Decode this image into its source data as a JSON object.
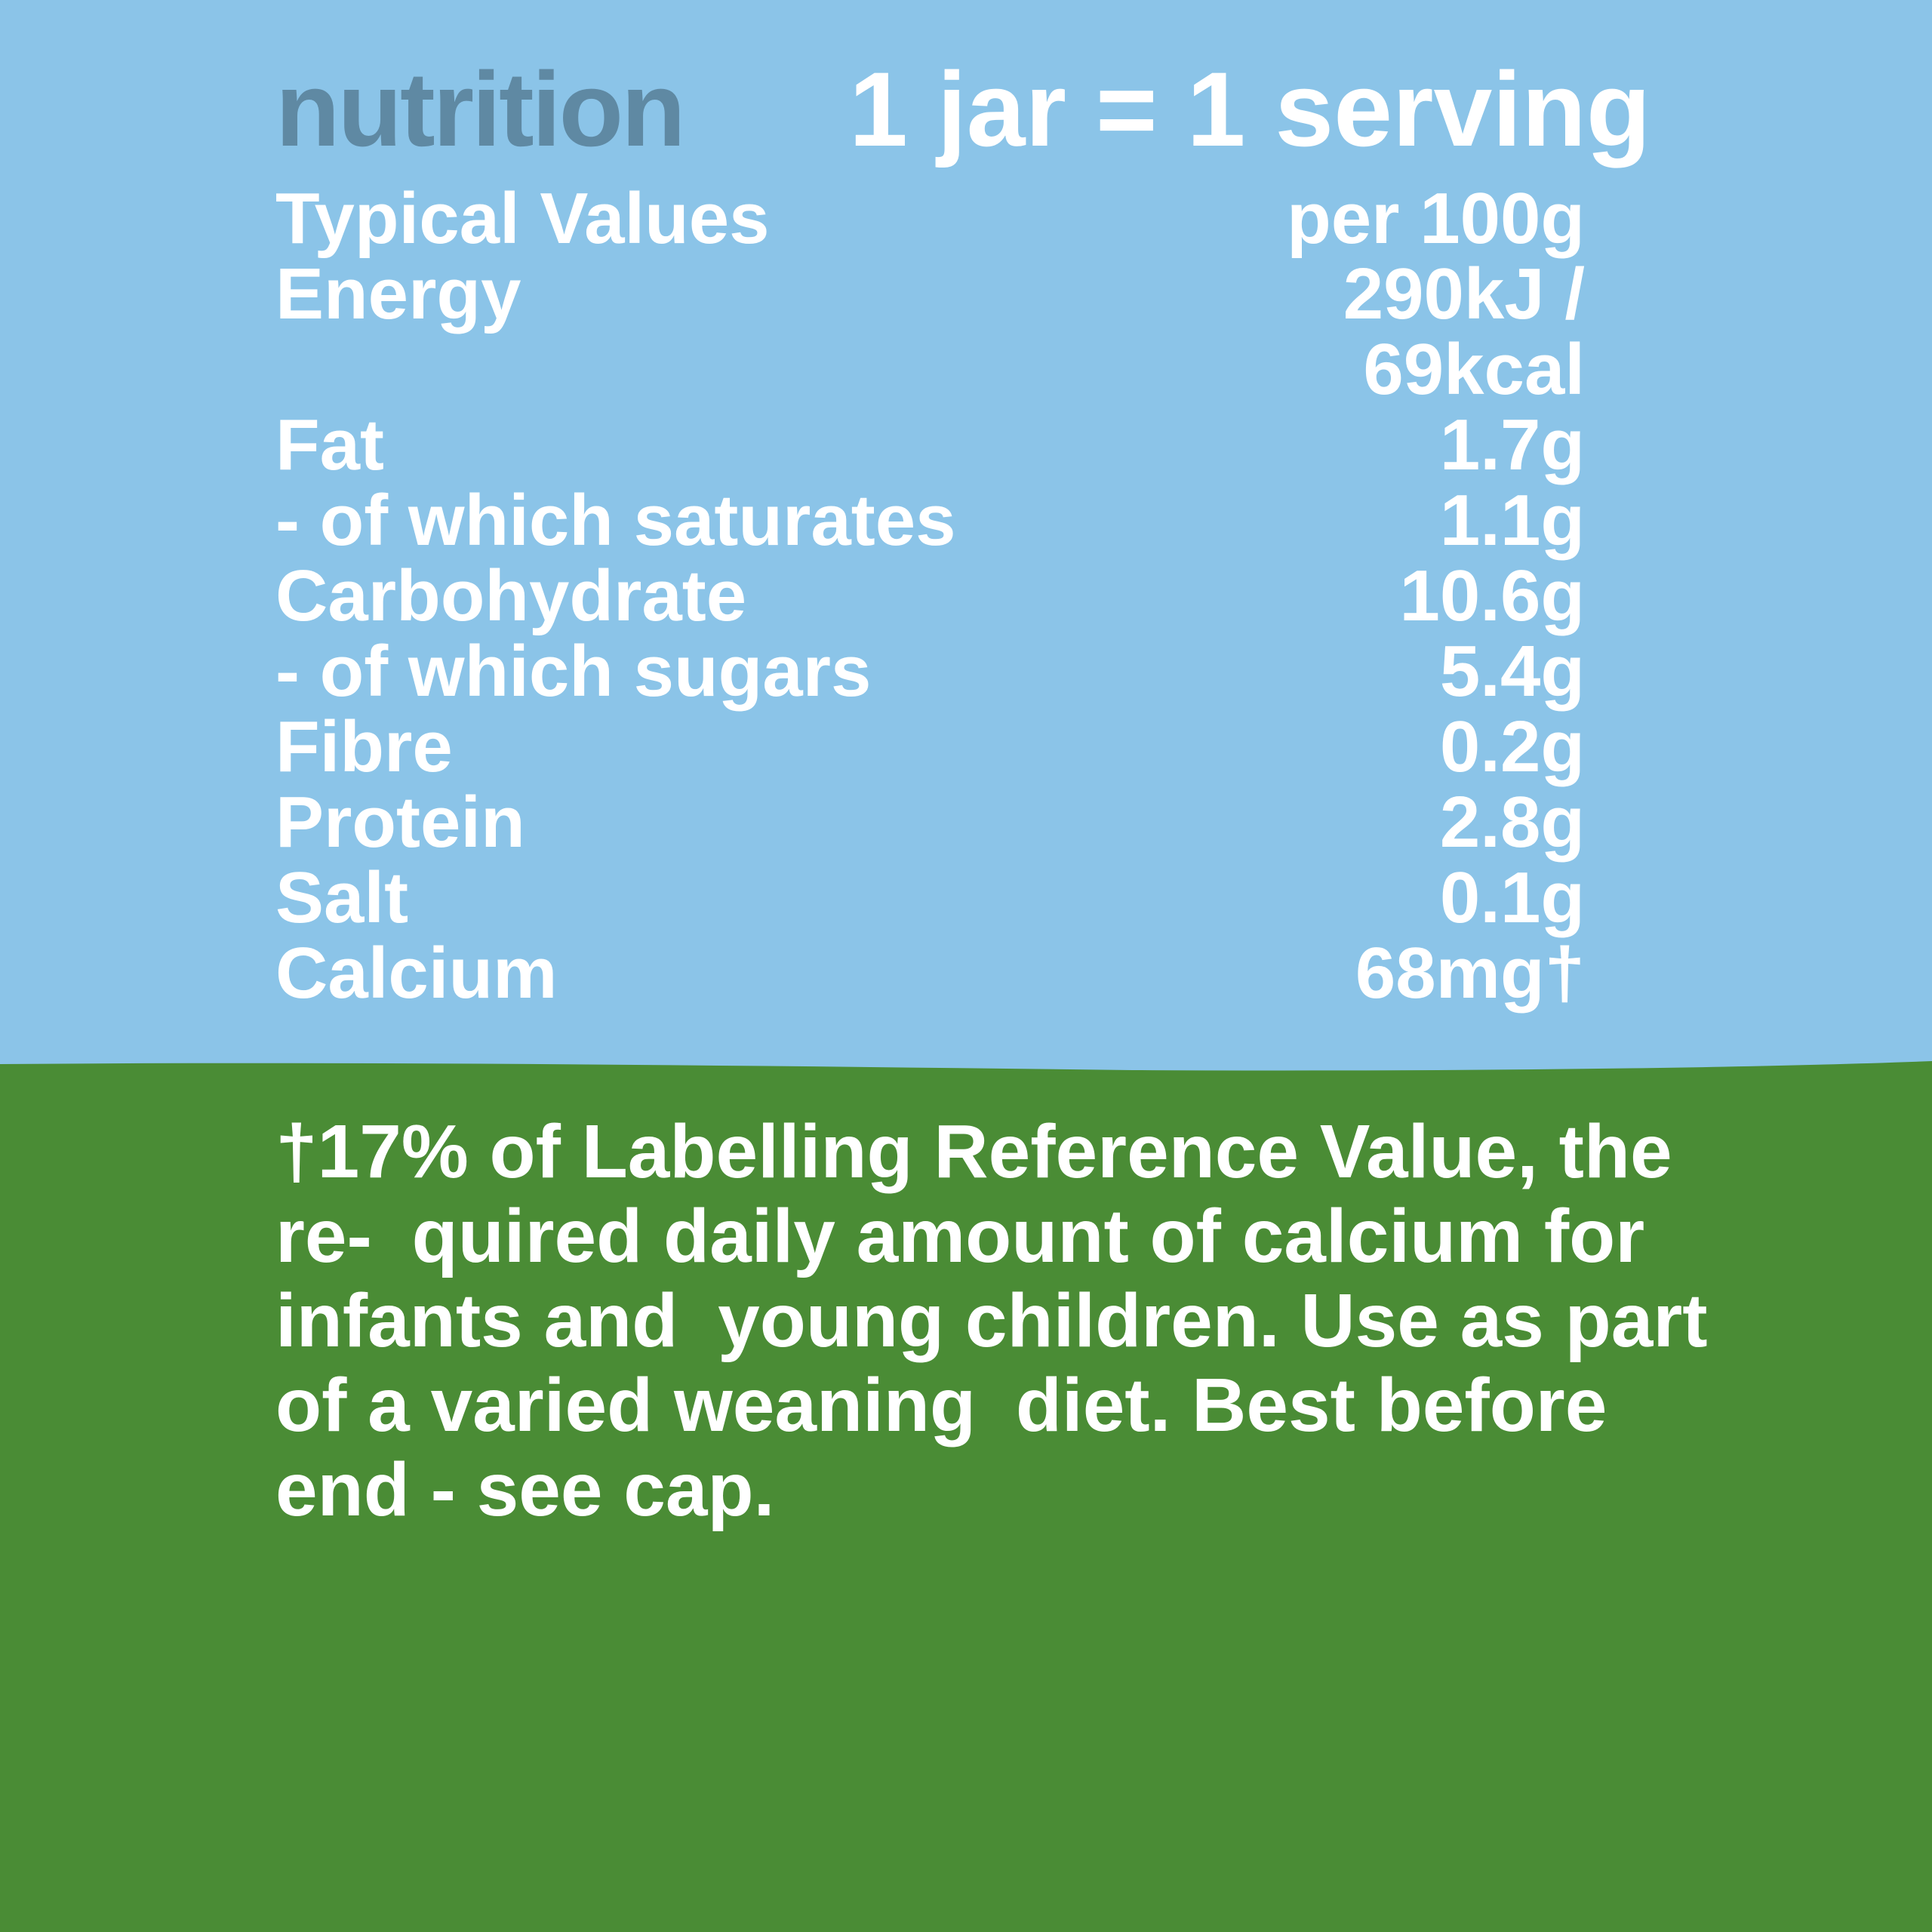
{
  "colors": {
    "background": "#8bc4e8",
    "heading": "#5f89a3",
    "footer_band": "#4a8c35",
    "text": "#ffffff"
  },
  "header": {
    "title": "nutrition",
    "serving": "1 jar = 1 serving"
  },
  "table": {
    "column_label": "Typical Values",
    "column_value": "per 100g",
    "rows": [
      {
        "label": "Energy",
        "value": "290kJ /"
      },
      {
        "label": "",
        "value": "69kcal"
      },
      {
        "label": "Fat",
        "value": "1.7g"
      },
      {
        "label": "- of which saturates",
        "value": "1.1g"
      },
      {
        "label": "Carbohydrate",
        "value": "10.6g"
      },
      {
        "label": "- of which sugars",
        "value": "5.4g"
      },
      {
        "label": "Fibre",
        "value": "0.2g"
      },
      {
        "label": "Protein",
        "value": "2.8g"
      },
      {
        "label": "Salt",
        "value": "0.1g"
      },
      {
        "label": "Calcium",
        "value": "68mg†"
      }
    ]
  },
  "footnote": {
    "lines": [
      "†17% of Labelling Reference Value, the re-",
      "quired daily amount of calcium for infants and",
      "young children. Use as part of a varied weaning",
      "diet. Best before end - see cap."
    ]
  }
}
